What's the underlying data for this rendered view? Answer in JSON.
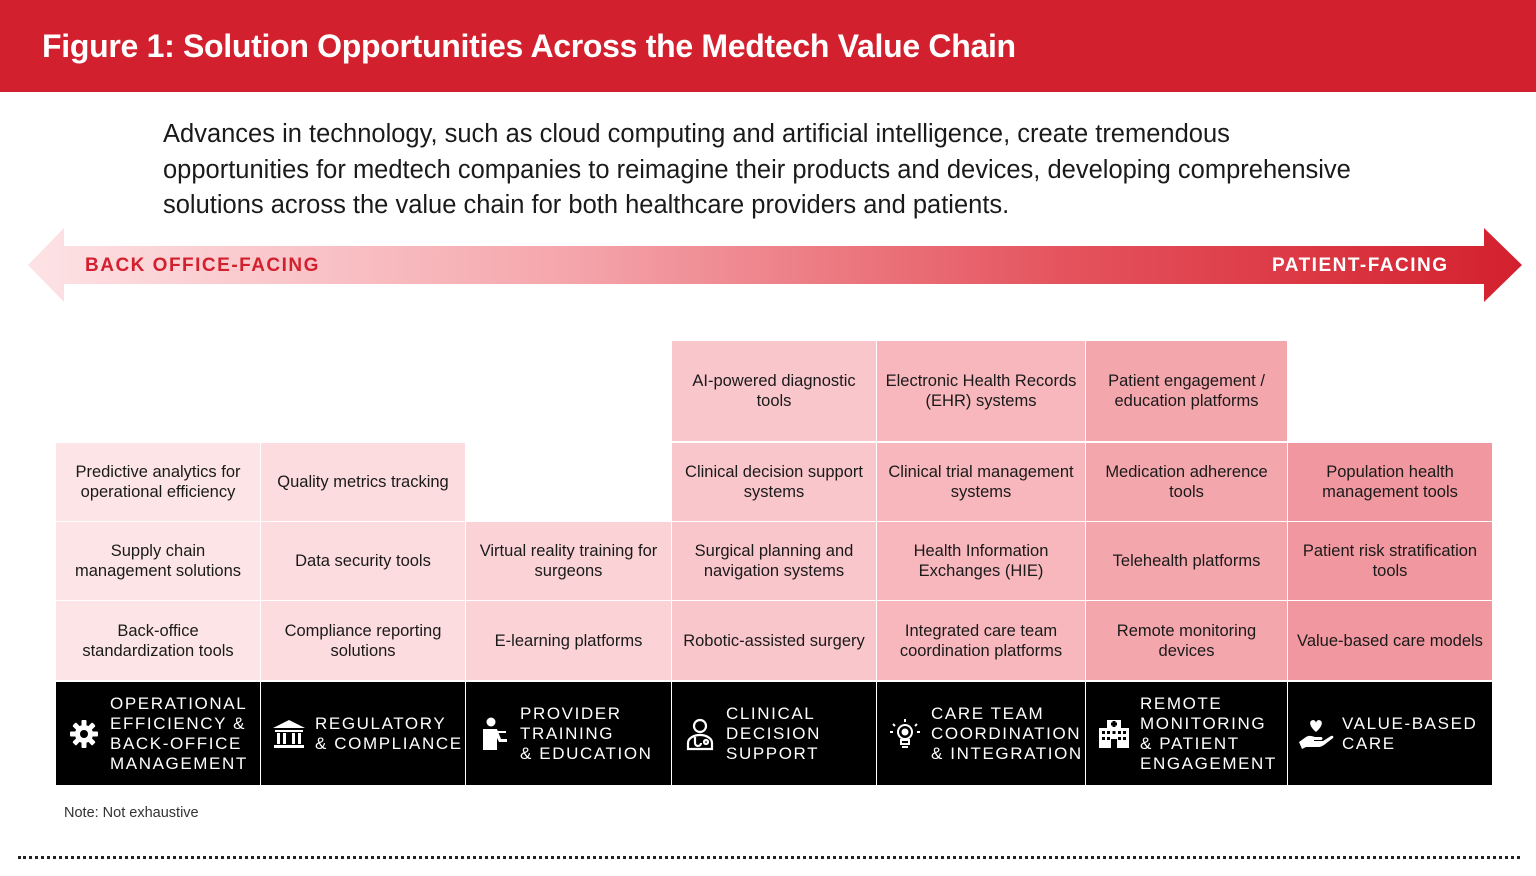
{
  "header": {
    "title": "Figure 1: Solution Opportunities Across the Medtech Value Chain"
  },
  "intro": "Advances in technology, such as cloud computing and artificial intelligence, create tremendous opportunities for medtech companies to reimagine their products and devices, developing comprehensive solutions across the value chain for both healthcare providers and patients.",
  "arrow": {
    "left_label": "BACK OFFICE-FACING",
    "right_label": "PATIENT-FACING"
  },
  "columns": [
    {
      "category": "OPERATIONAL\nEFFICIENCY &\nBACK-OFFICE\nMANAGEMENT",
      "icon": "gear-icon",
      "color": "#fde5e7",
      "items": [
        "",
        "Predictive analytics for operational efficiency",
        "Supply chain management solutions",
        "Back-office standardization tools"
      ]
    },
    {
      "category": "REGULATORY\n& COMPLIANCE",
      "icon": "institution-icon",
      "color": "#fcdcdf",
      "items": [
        "",
        "Quality metrics tracking",
        "Data security tools",
        "Compliance reporting solutions"
      ]
    },
    {
      "category": "PROVIDER\nTRAINING\n& EDUCATION",
      "icon": "trainer-icon",
      "color": "#fbd3d7",
      "items": [
        "",
        "",
        "Virtual reality training for surgeons",
        "E-learning platforms"
      ]
    },
    {
      "category": "CLINICAL\nDECISION\nSUPPORT",
      "icon": "doctor-icon",
      "color": "#f9c6cb",
      "items": [
        "AI-powered diagnostic tools",
        "Clinical decision support systems",
        "Surgical planning and navigation systems",
        "Robotic-assisted surgery"
      ]
    },
    {
      "category": "CARE TEAM\nCOORDINATION\n& INTEGRATION",
      "icon": "lightbulb-icon",
      "color": "#f7b7bd",
      "items": [
        "Electronic Health Records (EHR) systems",
        "Clinical trial management systems",
        "Health Information Exchanges (HIE)",
        "Integrated care team coordination platforms"
      ]
    },
    {
      "category": "REMOTE\nMONITORING\n& PATIENT\nENGAGEMENT",
      "icon": "hospital-icon",
      "color": "#f4a6ad",
      "items": [
        "Patient engagement / education platforms",
        "Medication adherence tools",
        "Telehealth platforms",
        "Remote monitoring devices"
      ]
    },
    {
      "category": "VALUE-BASED\nCARE",
      "icon": "heart-hand-icon",
      "color": "#f1979f",
      "items": [
        "",
        "Population health management tools",
        "Patient risk stratification tools",
        "Value-based care models"
      ]
    }
  ],
  "note": "Note: Not exhaustive"
}
